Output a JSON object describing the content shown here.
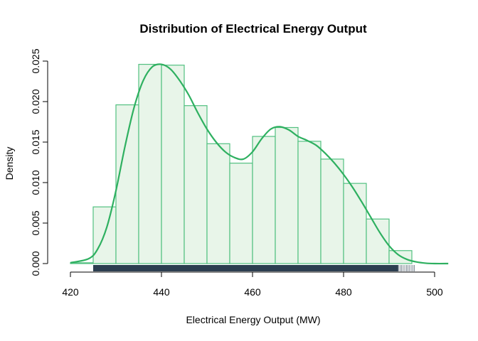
{
  "chart_data": {
    "type": "bar",
    "title": "Distribution of Electrical Energy Output",
    "xlabel": "Electrical Energy Output (MW)",
    "ylabel": "Density",
    "xlim": [
      420,
      500
    ],
    "ylim": [
      0,
      0.025
    ],
    "x_ticks": [
      "420",
      "440",
      "460",
      "480",
      "500"
    ],
    "y_ticks": [
      "0.000",
      "0.005",
      "0.010",
      "0.015",
      "0.020",
      "0.025"
    ],
    "histogram": {
      "bin_edges": [
        420,
        425,
        430,
        435,
        440,
        445,
        450,
        455,
        460,
        465,
        470,
        475,
        480,
        485,
        490,
        495
      ],
      "densities": [
        0.0001,
        0.007,
        0.0196,
        0.0246,
        0.0245,
        0.0195,
        0.0148,
        0.0124,
        0.0157,
        0.0168,
        0.0151,
        0.0129,
        0.0099,
        0.0055,
        0.0016
      ]
    },
    "density_curve": {
      "x": [
        420,
        424,
        426,
        428,
        430,
        432,
        434,
        436,
        438,
        440,
        442,
        444,
        446,
        448,
        450,
        452,
        454,
        456,
        458,
        460,
        462,
        464,
        466,
        468,
        470,
        472,
        474,
        476,
        478,
        480,
        482,
        484,
        486,
        488,
        490,
        492,
        494,
        496,
        498,
        500,
        503
      ],
      "y": [
        0.0001,
        0.0006,
        0.0018,
        0.0045,
        0.009,
        0.0145,
        0.0193,
        0.0226,
        0.0243,
        0.0246,
        0.024,
        0.0226,
        0.0208,
        0.0186,
        0.0166,
        0.015,
        0.0138,
        0.0131,
        0.0129,
        0.0138,
        0.0154,
        0.0166,
        0.0169,
        0.0165,
        0.0157,
        0.0152,
        0.0146,
        0.0136,
        0.0124,
        0.011,
        0.0094,
        0.0076,
        0.0057,
        0.0038,
        0.0022,
        0.0011,
        0.0005,
        0.0002,
        5e-05,
        0.0,
        0.0
      ]
    },
    "rug": {
      "from": 425,
      "to": 495.8
    },
    "grid": false,
    "colors": {
      "bar_fill": "#e8f5e9",
      "bar_stroke": "#52c080",
      "curve": "#2eb060",
      "rug": "#2c3e50",
      "axis": "#000000"
    }
  }
}
